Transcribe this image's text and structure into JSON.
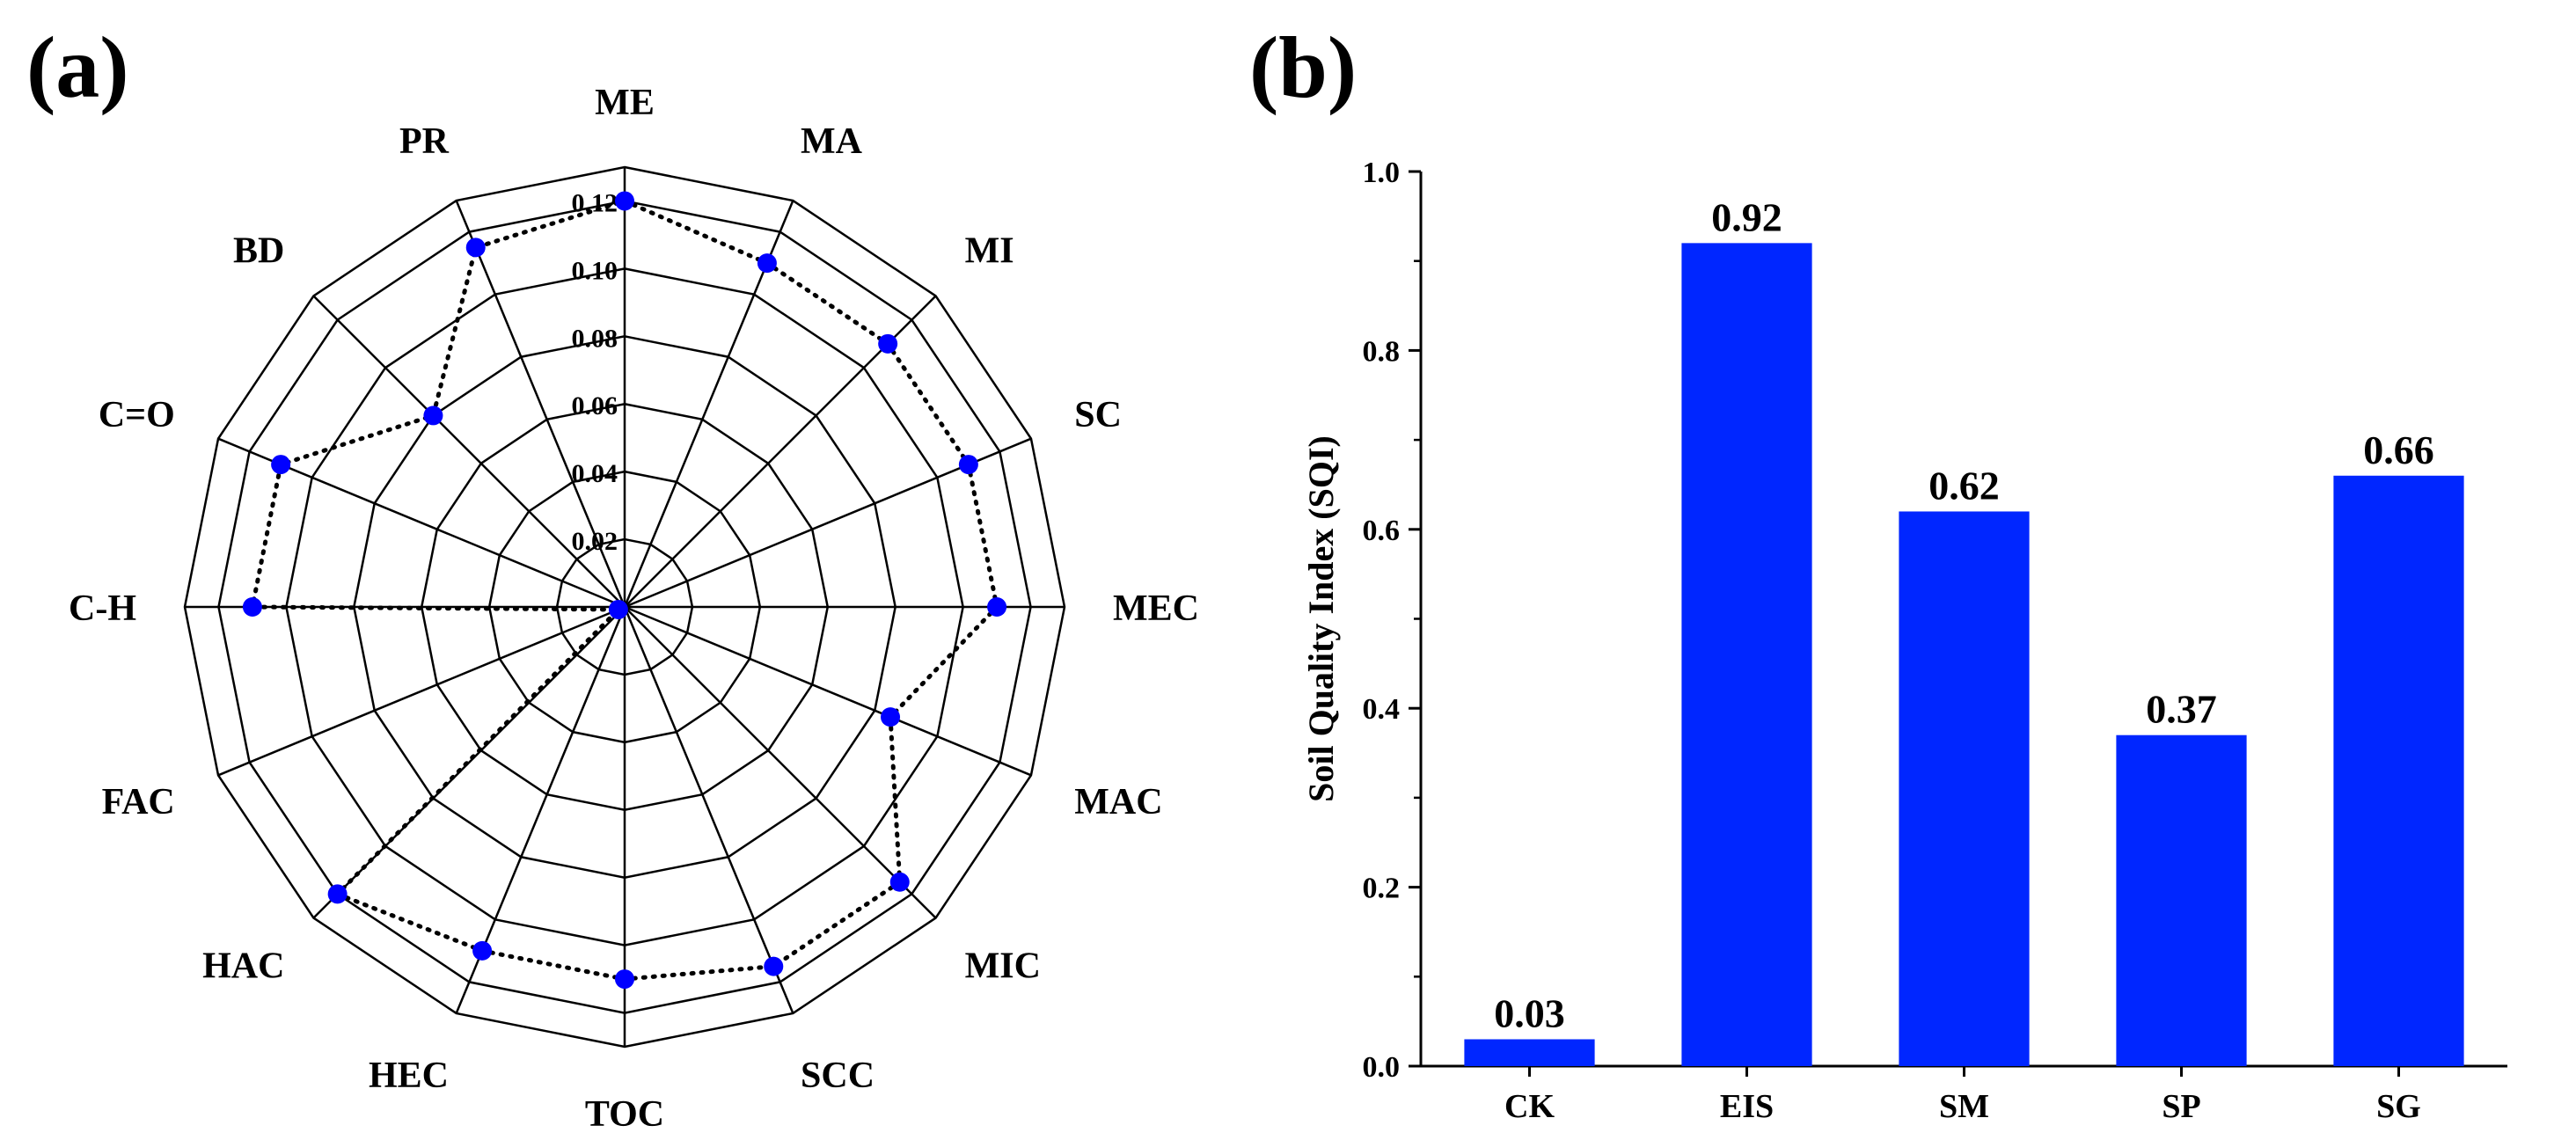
{
  "panels": {
    "a_label": "(a)",
    "b_label": "(b)"
  },
  "colors": {
    "bar": "#0026ff",
    "marker": "#0000ff",
    "line": "#000000"
  },
  "chart_data": [
    {
      "type": "radar",
      "panel": "(a)",
      "categories": [
        "ME",
        "MA",
        "MI",
        "SC",
        "MEC",
        "MAC",
        "MIC",
        "SCC",
        "TOC",
        "HEC",
        "HAC",
        "FAC",
        "C-H",
        "C=O",
        "BD",
        "PR"
      ],
      "values": [
        0.12,
        0.11,
        0.11,
        0.11,
        0.11,
        0.085,
        0.115,
        0.115,
        0.11,
        0.11,
        0.12,
        0.002,
        0.11,
        0.11,
        0.08,
        0.115
      ],
      "rlim": [
        0,
        0.13
      ],
      "r_ticks": [
        0.02,
        0.04,
        0.06,
        0.08,
        0.1,
        0.12
      ],
      "r_tick_labels": [
        "0.02",
        "0.04",
        "0.06",
        "0.08",
        "0.10",
        "0.12"
      ],
      "title": ""
    },
    {
      "type": "bar",
      "panel": "(b)",
      "categories": [
        "CK",
        "EIS",
        "SM",
        "SP",
        "SG"
      ],
      "values": [
        0.03,
        0.92,
        0.62,
        0.37,
        0.66
      ],
      "value_labels": [
        "0.03",
        "0.92",
        "0.62",
        "0.37",
        "0.66"
      ],
      "ylabel": "Soil Quality Index (SQI)",
      "xlabel": "",
      "ylim": [
        0,
        1.0
      ],
      "y_ticks": [
        0.0,
        0.2,
        0.4,
        0.6,
        0.8,
        1.0
      ],
      "y_tick_labels": [
        "0.0",
        "0.2",
        "0.4",
        "0.6",
        "0.8",
        "1.0"
      ],
      "title": ""
    }
  ]
}
